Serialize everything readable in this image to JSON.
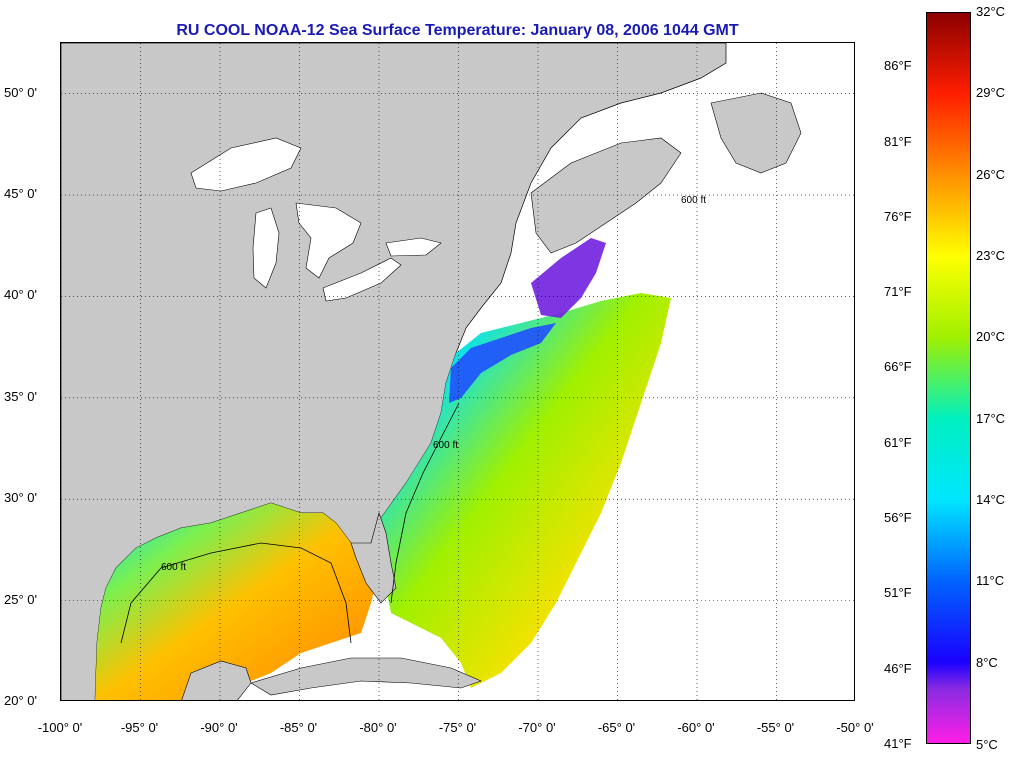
{
  "title": "RU COOL  NOAA-12  Sea Surface Temperature:  January 08, 2006 1044 GMT",
  "map": {
    "lon_range": [
      -100,
      -50
    ],
    "lat_range": [
      20,
      52.5
    ],
    "land_color": "#c8c8c8",
    "no_data_color": "#ffffff",
    "isobath_label": "600 ft",
    "lat_ticks": [
      {
        "value": 50,
        "label": "50° 0'"
      },
      {
        "value": 45,
        "label": "45° 0'"
      },
      {
        "value": 40,
        "label": "40° 0'"
      },
      {
        "value": 35,
        "label": "35° 0'"
      },
      {
        "value": 30,
        "label": "30° 0'"
      },
      {
        "value": 25,
        "label": "25° 0'"
      },
      {
        "value": 20,
        "label": "20° 0'"
      }
    ],
    "lon_ticks": [
      {
        "value": -100,
        "label": "-100° 0'"
      },
      {
        "value": -95,
        "label": "-95° 0'"
      },
      {
        "value": -90,
        "label": "-90° 0'"
      },
      {
        "value": -85,
        "label": "-85° 0'"
      },
      {
        "value": -80,
        "label": "-80° 0'"
      },
      {
        "value": -75,
        "label": "-75° 0'"
      },
      {
        "value": -70,
        "label": "-70° 0'"
      },
      {
        "value": -65,
        "label": "-65° 0'"
      },
      {
        "value": -60,
        "label": "-60° 0'"
      },
      {
        "value": -55,
        "label": "-55° 0'"
      },
      {
        "value": -50,
        "label": "-50° 0'"
      }
    ]
  },
  "colorbar": {
    "min_c": 5,
    "max_c": 32,
    "celsius_ticks": [
      {
        "value": 32,
        "label": "32°C"
      },
      {
        "value": 29,
        "label": "29°C"
      },
      {
        "value": 26,
        "label": "26°C"
      },
      {
        "value": 23,
        "label": "23°C"
      },
      {
        "value": 20,
        "label": "20°C"
      },
      {
        "value": 17,
        "label": "17°C"
      },
      {
        "value": 14,
        "label": "14°C"
      },
      {
        "value": 11,
        "label": "11°C"
      },
      {
        "value": 8,
        "label": "8°C"
      },
      {
        "value": 5,
        "label": "5°C"
      }
    ],
    "fahrenheit_ticks": [
      {
        "value": 86,
        "label": "86°F"
      },
      {
        "value": 81,
        "label": "81°F"
      },
      {
        "value": 76,
        "label": "76°F"
      },
      {
        "value": 71,
        "label": "71°F"
      },
      {
        "value": 66,
        "label": "66°F"
      },
      {
        "value": 61,
        "label": "61°F"
      },
      {
        "value": 56,
        "label": "56°F"
      },
      {
        "value": 51,
        "label": "51°F"
      },
      {
        "value": 46,
        "label": "46°F"
      },
      {
        "value": 41,
        "label": "41°F"
      }
    ],
    "gradient_stops": [
      {
        "c": 5,
        "color": "#ff1ee6"
      },
      {
        "c": 7,
        "color": "#8a2be2"
      },
      {
        "c": 8,
        "color": "#1a00ff"
      },
      {
        "c": 11,
        "color": "#0064ff"
      },
      {
        "c": 14,
        "color": "#00e6ff"
      },
      {
        "c": 17,
        "color": "#00f0c0"
      },
      {
        "c": 20,
        "color": "#a0f000"
      },
      {
        "c": 23,
        "color": "#ffff00"
      },
      {
        "c": 26,
        "color": "#ff9000"
      },
      {
        "c": 29,
        "color": "#ff1e00"
      },
      {
        "c": 32,
        "color": "#8c0000"
      }
    ]
  }
}
